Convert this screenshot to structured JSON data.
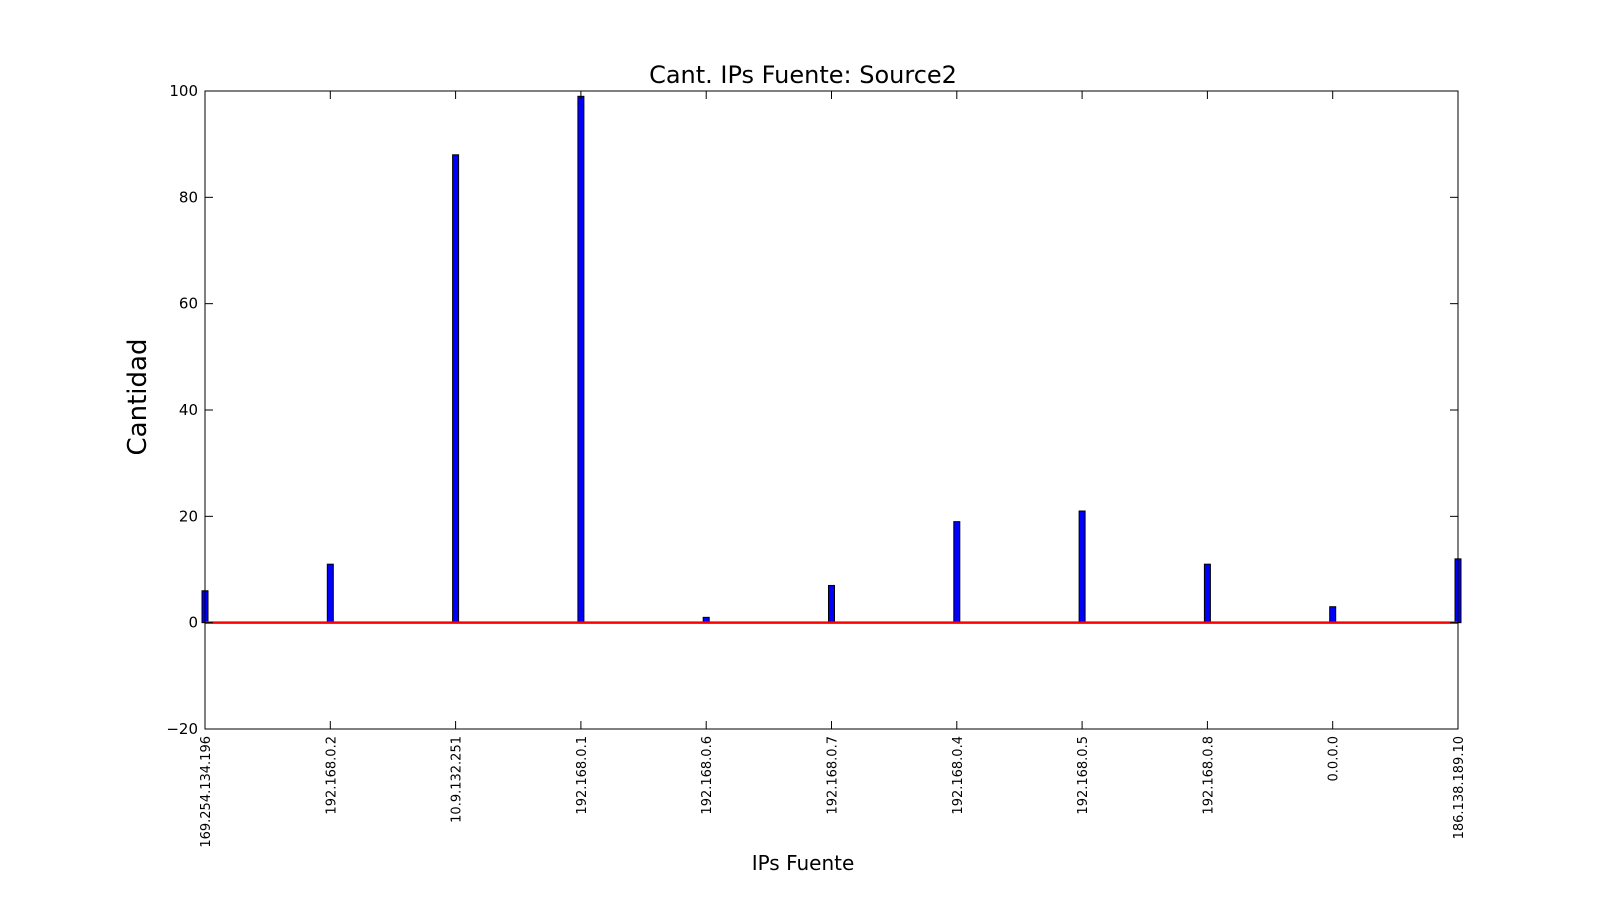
{
  "chart_data": {
    "type": "bar",
    "title": "Cant. IPs Fuente: Source2",
    "xlabel": "IPs Fuente",
    "ylabel": "Cantidad",
    "ylim": [
      -20,
      100
    ],
    "yticks": [
      100,
      80,
      60,
      40,
      20,
      0,
      -20
    ],
    "ytick_labels": [
      "100",
      "80",
      "60",
      "40",
      "20",
      "0",
      "−20"
    ],
    "categories": [
      "169.254.134.196",
      "192.168.0.2",
      "10.9.132.251",
      "192.168.0.1",
      "192.168.0.6",
      "192.168.0.7",
      "192.168.0.4",
      "192.168.0.5",
      "192.168.0.8",
      "0.0.0.0",
      "186.138.189.10"
    ],
    "values": [
      6,
      11,
      88,
      99,
      1,
      7,
      19,
      21,
      11,
      3,
      12
    ],
    "reference_line": {
      "y": 0,
      "color": "#ff0000"
    },
    "grid": false,
    "legend": "none",
    "colors": {
      "bar": "#0000ff",
      "edge": "#000000",
      "reference": "#ff0000"
    }
  }
}
